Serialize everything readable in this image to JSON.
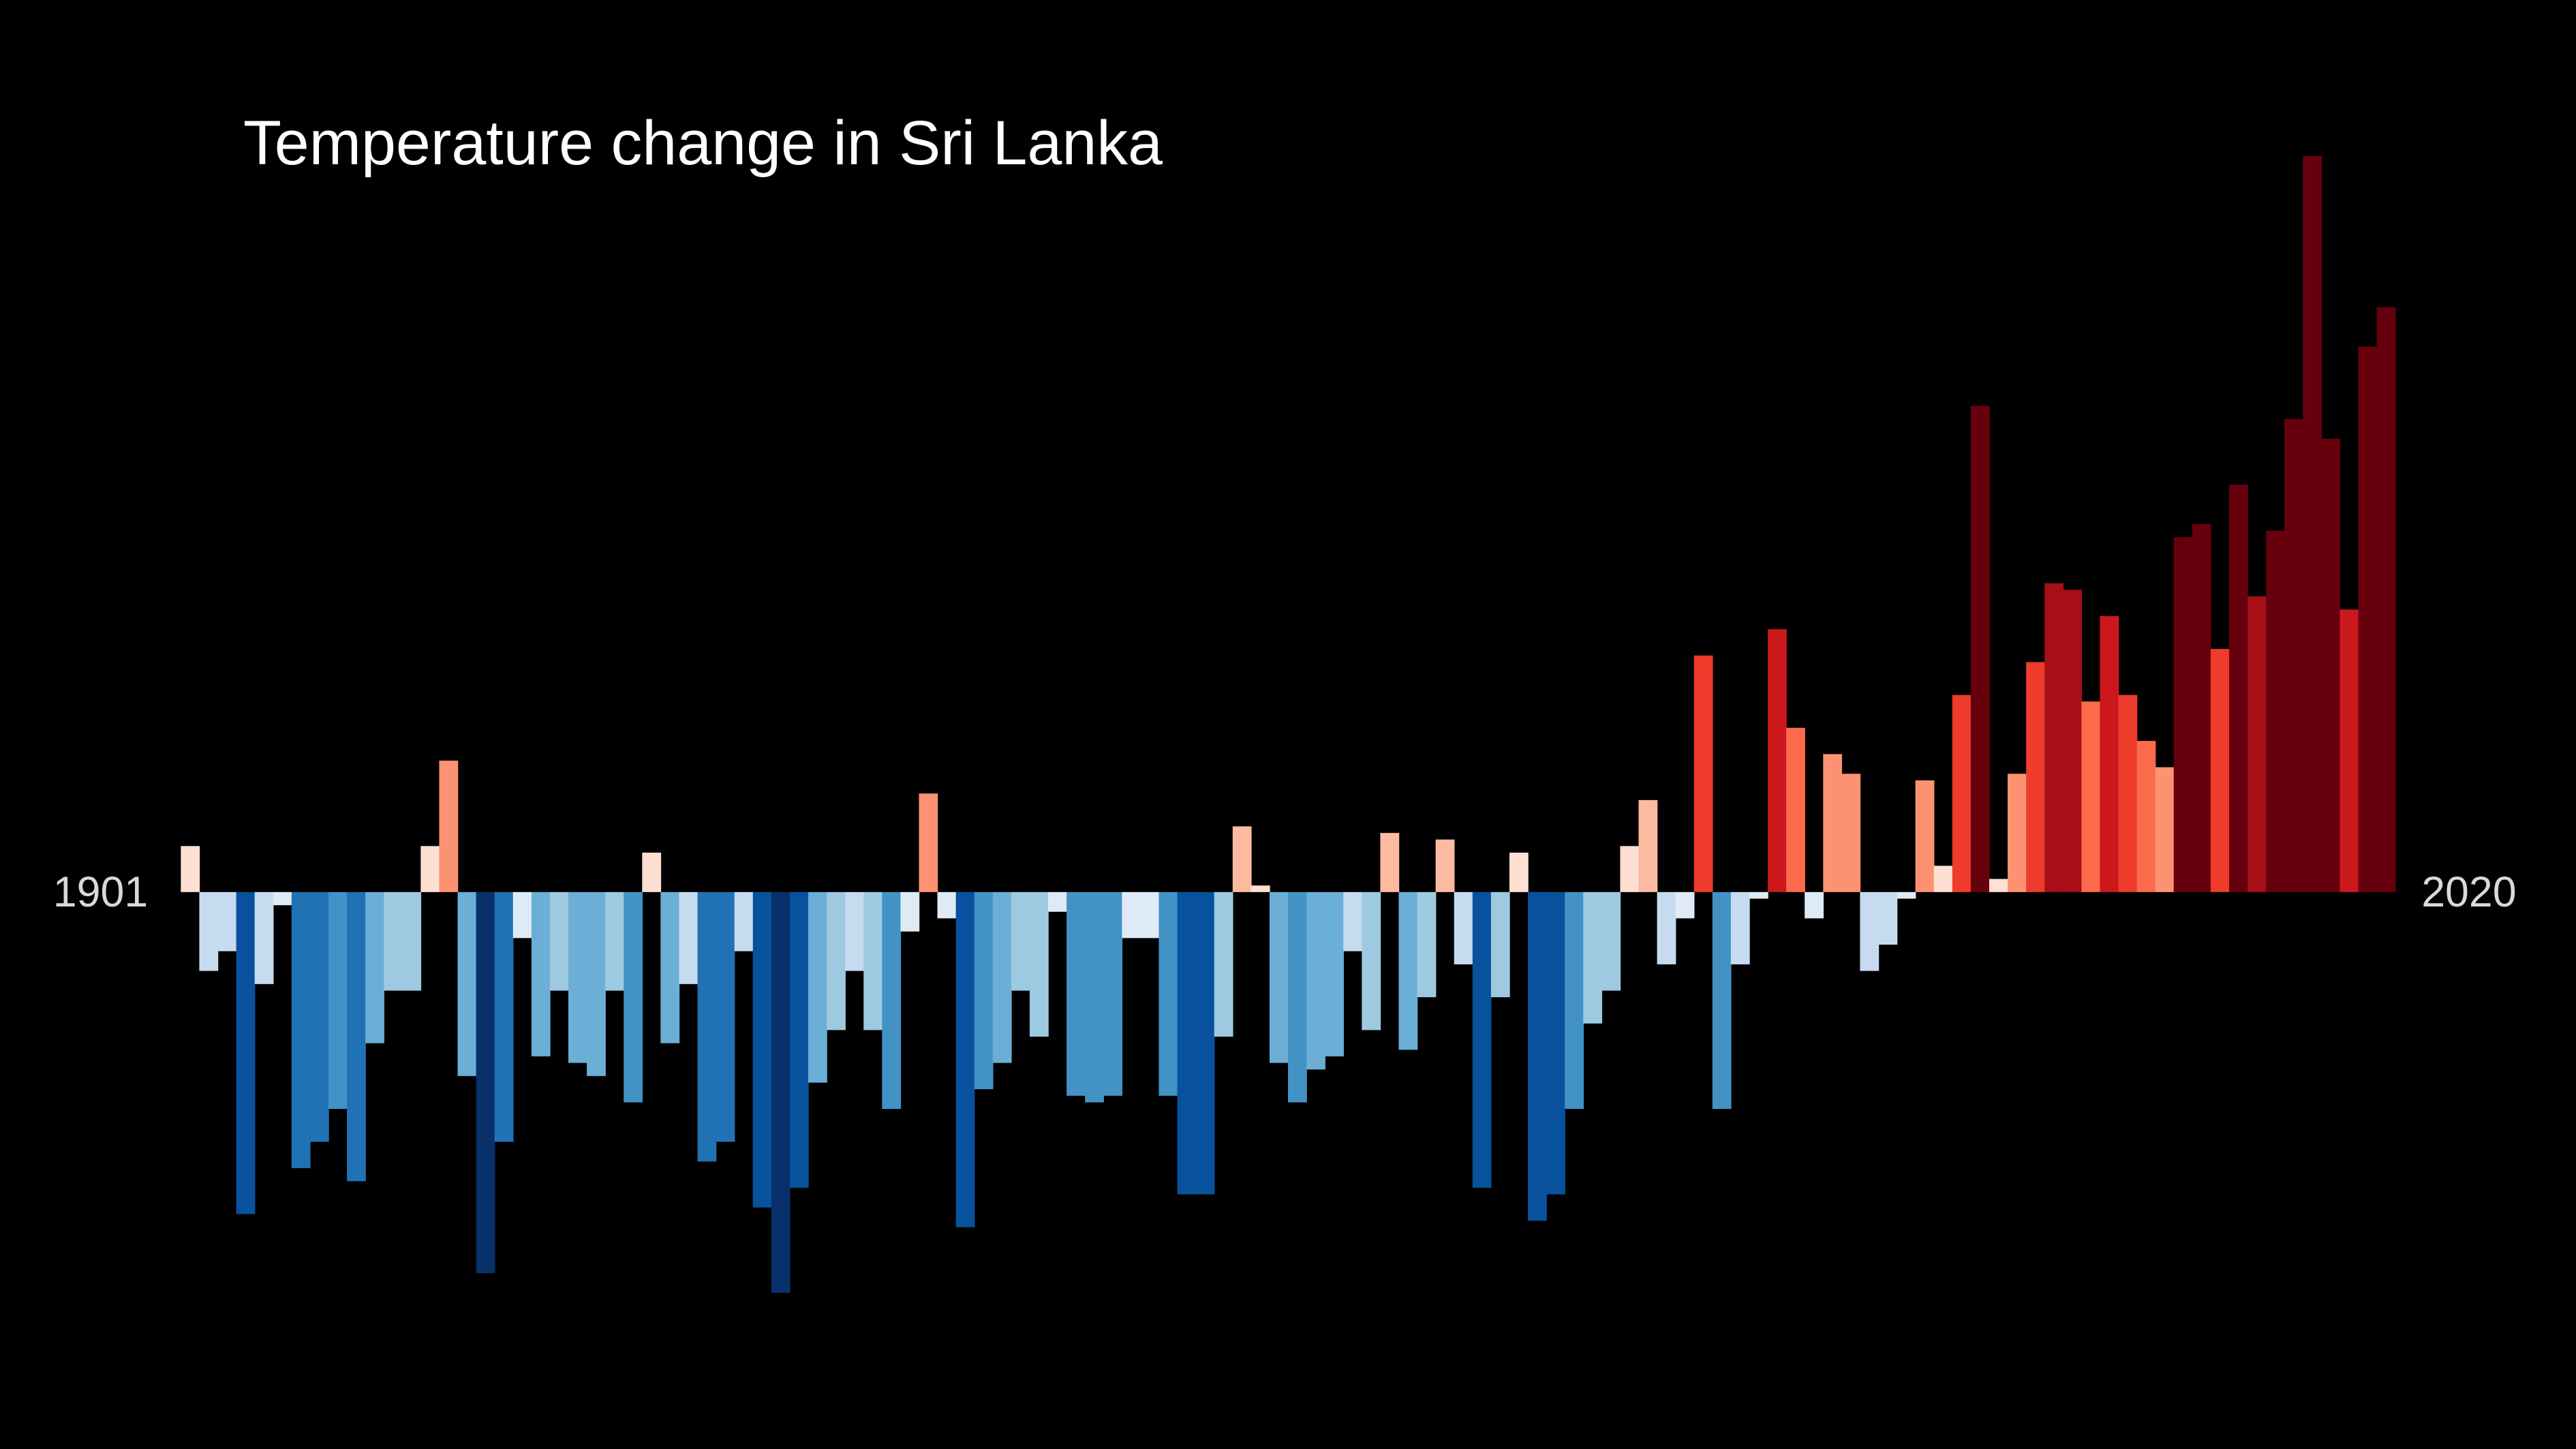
{
  "chart_data": {
    "type": "bar",
    "title": "Temperature change in Sri Lanka",
    "categories": [
      "1901",
      null,
      null,
      null,
      null,
      null,
      null,
      null,
      null,
      null,
      null,
      null,
      null,
      null,
      null,
      null,
      null,
      null,
      null,
      null,
      null,
      null,
      null,
      null,
      null,
      null,
      null,
      null,
      null,
      null,
      null,
      null,
      null,
      null,
      null,
      null,
      null,
      null,
      null,
      null,
      null,
      null,
      null,
      null,
      null,
      null,
      null,
      null,
      null,
      null,
      null,
      null,
      null,
      null,
      null,
      null,
      null,
      null,
      null,
      null,
      null,
      null,
      null,
      null,
      null,
      null,
      null,
      null,
      null,
      null,
      null,
      null,
      null,
      null,
      null,
      null,
      null,
      null,
      null,
      null,
      null,
      null,
      null,
      null,
      null,
      null,
      null,
      null,
      null,
      null,
      null,
      null,
      null,
      null,
      null,
      null,
      null,
      null,
      null,
      null,
      null,
      null,
      null,
      null,
      null,
      null,
      null,
      null,
      null,
      null,
      null,
      null,
      null,
      null,
      null,
      null,
      null,
      null,
      null,
      "2020"
    ],
    "values": [
      0.07,
      -0.12,
      -0.09,
      -0.49,
      -0.14,
      -0.02,
      -0.42,
      -0.38,
      -0.33,
      -0.44,
      -0.23,
      -0.15,
      -0.15,
      0.07,
      0.2,
      -0.28,
      -0.58,
      -0.38,
      -0.07,
      -0.25,
      -0.15,
      -0.26,
      -0.28,
      -0.15,
      -0.32,
      0.06,
      -0.23,
      -0.14,
      -0.41,
      -0.38,
      -0.09,
      -0.48,
      -0.61,
      -0.45,
      -0.29,
      -0.21,
      -0.12,
      -0.21,
      -0.33,
      -0.06,
      0.15,
      -0.04,
      -0.51,
      -0.3,
      -0.26,
      -0.15,
      -0.22,
      -0.03,
      -0.31,
      -0.32,
      -0.31,
      -0.07,
      -0.07,
      -0.31,
      -0.46,
      -0.46,
      -0.22,
      0.1,
      0.01,
      -0.26,
      -0.32,
      -0.27,
      -0.25,
      -0.09,
      -0.21,
      0.09,
      -0.24,
      -0.16,
      0.08,
      -0.11,
      -0.45,
      -0.16,
      0.06,
      -0.5,
      -0.46,
      -0.33,
      -0.2,
      -0.15,
      0.07,
      0.14,
      -0.11,
      -0.04,
      0.36,
      -0.33,
      -0.11,
      -0.01,
      0.4,
      0.25,
      -0.04,
      0.21,
      0.18,
      -0.12,
      -0.08,
      -0.01,
      0.17,
      0.04,
      0.3,
      0.74,
      0.02,
      0.18,
      0.35,
      0.47,
      0.46,
      0.29,
      0.42,
      0.3,
      0.23,
      0.19,
      0.54,
      0.56,
      0.37,
      0.62,
      0.45,
      0.55,
      0.72,
      1.12,
      0.69,
      0.43,
      0.83,
      0.89
    ],
    "ylim": [
      -0.8,
      1.2
    ]
  }
}
